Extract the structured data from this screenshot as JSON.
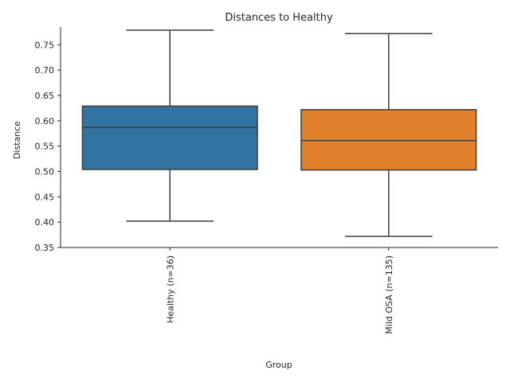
{
  "chart_data": {
    "type": "box",
    "title": "Distances to Healthy",
    "xlabel": "Group",
    "ylabel": "Distance",
    "ylim": [
      0.35,
      0.785
    ],
    "yticks": [
      "0.35",
      "0.40",
      "0.45",
      "0.50",
      "0.55",
      "0.60",
      "0.65",
      "0.70",
      "0.75"
    ],
    "grid": false,
    "categories": [
      "Healthy (n=36)",
      "Mild OSA (n=135)"
    ],
    "boxes": [
      {
        "category": "Healthy (n=36)",
        "min": 0.402,
        "q1": 0.504,
        "median": 0.587,
        "q3": 0.629,
        "max": 0.779,
        "color": "#3274a1"
      },
      {
        "category": "Mild OSA (n=135)",
        "min": 0.372,
        "q1": 0.503,
        "median": 0.561,
        "q3": 0.622,
        "max": 0.772,
        "color": "#e1812c"
      }
    ]
  }
}
